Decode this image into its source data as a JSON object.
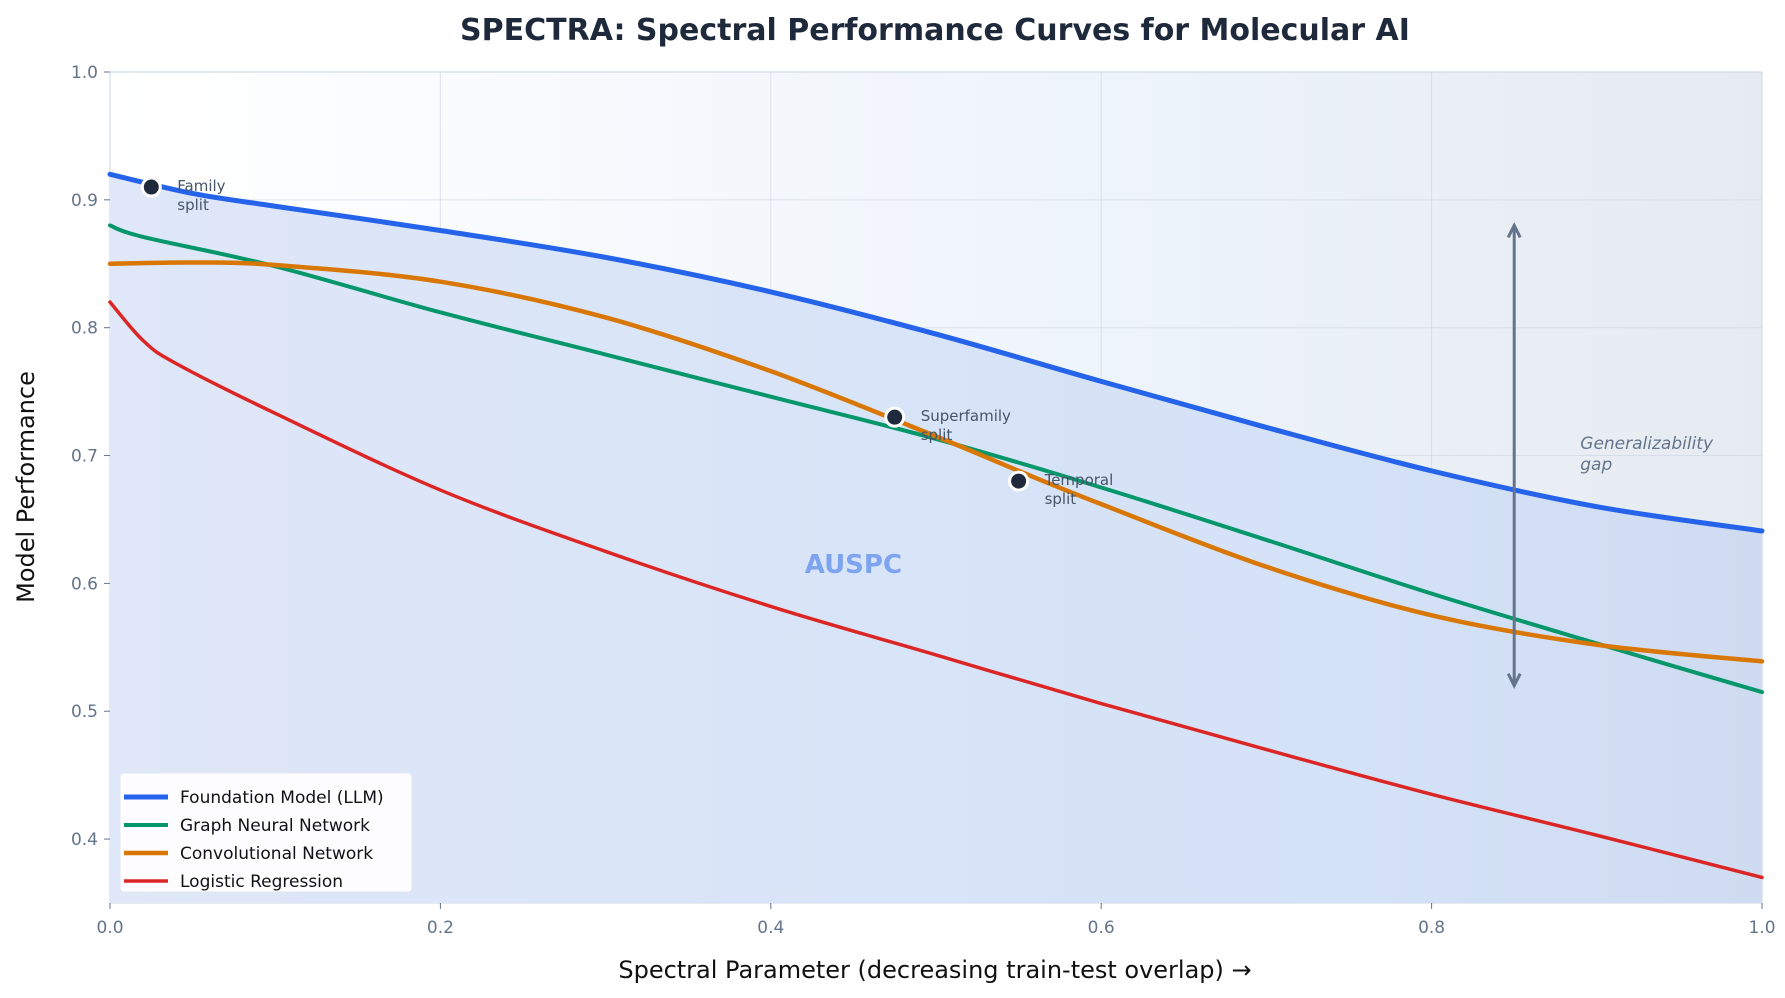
{
  "chart_data": {
    "type": "line",
    "title": "SPECTRA: Spectral Performance Curves for Molecular AI",
    "xlabel": "Spectral Parameter (decreasing train-test overlap) →",
    "ylabel": "Model Performance",
    "xlim": [
      0.0,
      1.0
    ],
    "ylim": [
      0.35,
      1.0
    ],
    "xticks": [
      "0.0",
      "0.2",
      "0.4",
      "0.6",
      "0.8",
      "1.0"
    ],
    "yticks": [
      "0.4",
      "0.5",
      "0.6",
      "0.7",
      "0.8",
      "0.9",
      "1.0"
    ],
    "grid": true,
    "legend_position": "bottom-left",
    "series": [
      {
        "name": "Foundation Model (LLM)",
        "color": "#2563eb",
        "width": 5,
        "x": [
          0,
          0.05,
          0.1,
          0.2,
          0.3,
          0.4,
          0.5,
          0.6,
          0.7,
          0.8,
          0.9,
          1.0
        ],
        "y": [
          0.92,
          0.905,
          0.895,
          0.876,
          0.855,
          0.828,
          0.795,
          0.758,
          0.722,
          0.688,
          0.66,
          0.641
        ]
      },
      {
        "name": "Graph Neural Network",
        "color": "#059669",
        "width": 4,
        "x": [
          0,
          0.02,
          0.1,
          0.2,
          0.3,
          0.4,
          0.5,
          0.6,
          0.7,
          0.8,
          0.9,
          1.0
        ],
        "y": [
          0.88,
          0.871,
          0.848,
          0.812,
          0.779,
          0.746,
          0.713,
          0.675,
          0.634,
          0.592,
          0.553,
          0.515
        ]
      },
      {
        "name": "Convolutional Network",
        "color": "#d97706",
        "width": 4.5,
        "x": [
          0,
          0.05,
          0.1,
          0.2,
          0.3,
          0.4,
          0.5,
          0.55,
          0.6,
          0.7,
          0.8,
          0.9,
          1.0
        ],
        "y": [
          0.85,
          0.851,
          0.849,
          0.836,
          0.808,
          0.766,
          0.715,
          0.688,
          0.662,
          0.613,
          0.575,
          0.552,
          0.539
        ]
      },
      {
        "name": "Logistic Regression",
        "color": "#dc2626",
        "width": 3.5,
        "x": [
          0,
          0.02,
          0.04,
          0.1,
          0.2,
          0.3,
          0.4,
          0.5,
          0.6,
          0.7,
          0.8,
          0.9,
          1.0
        ],
        "y": [
          0.82,
          0.79,
          0.772,
          0.733,
          0.673,
          0.625,
          0.582,
          0.544,
          0.506,
          0.47,
          0.435,
          0.403,
          0.37
        ]
      }
    ],
    "markers": [
      {
        "label_1": "Family",
        "label_2": "split",
        "x": 0.025,
        "y": 0.91
      },
      {
        "label_1": "Superfamily",
        "label_2": "split",
        "x": 0.475,
        "y": 0.73
      },
      {
        "label_1": "Temporal",
        "label_2": "split",
        "x": 0.55,
        "y": 0.68
      }
    ],
    "area_label": {
      "text": "AUSPC",
      "x": 0.45,
      "y": 0.615,
      "color": "#7ea3ef"
    },
    "gap_arrow": {
      "x": 0.85,
      "y_from": 0.52,
      "y_to": 0.88,
      "label_1": "Generalizability",
      "label_2": "gap",
      "color": "#64748b"
    }
  }
}
